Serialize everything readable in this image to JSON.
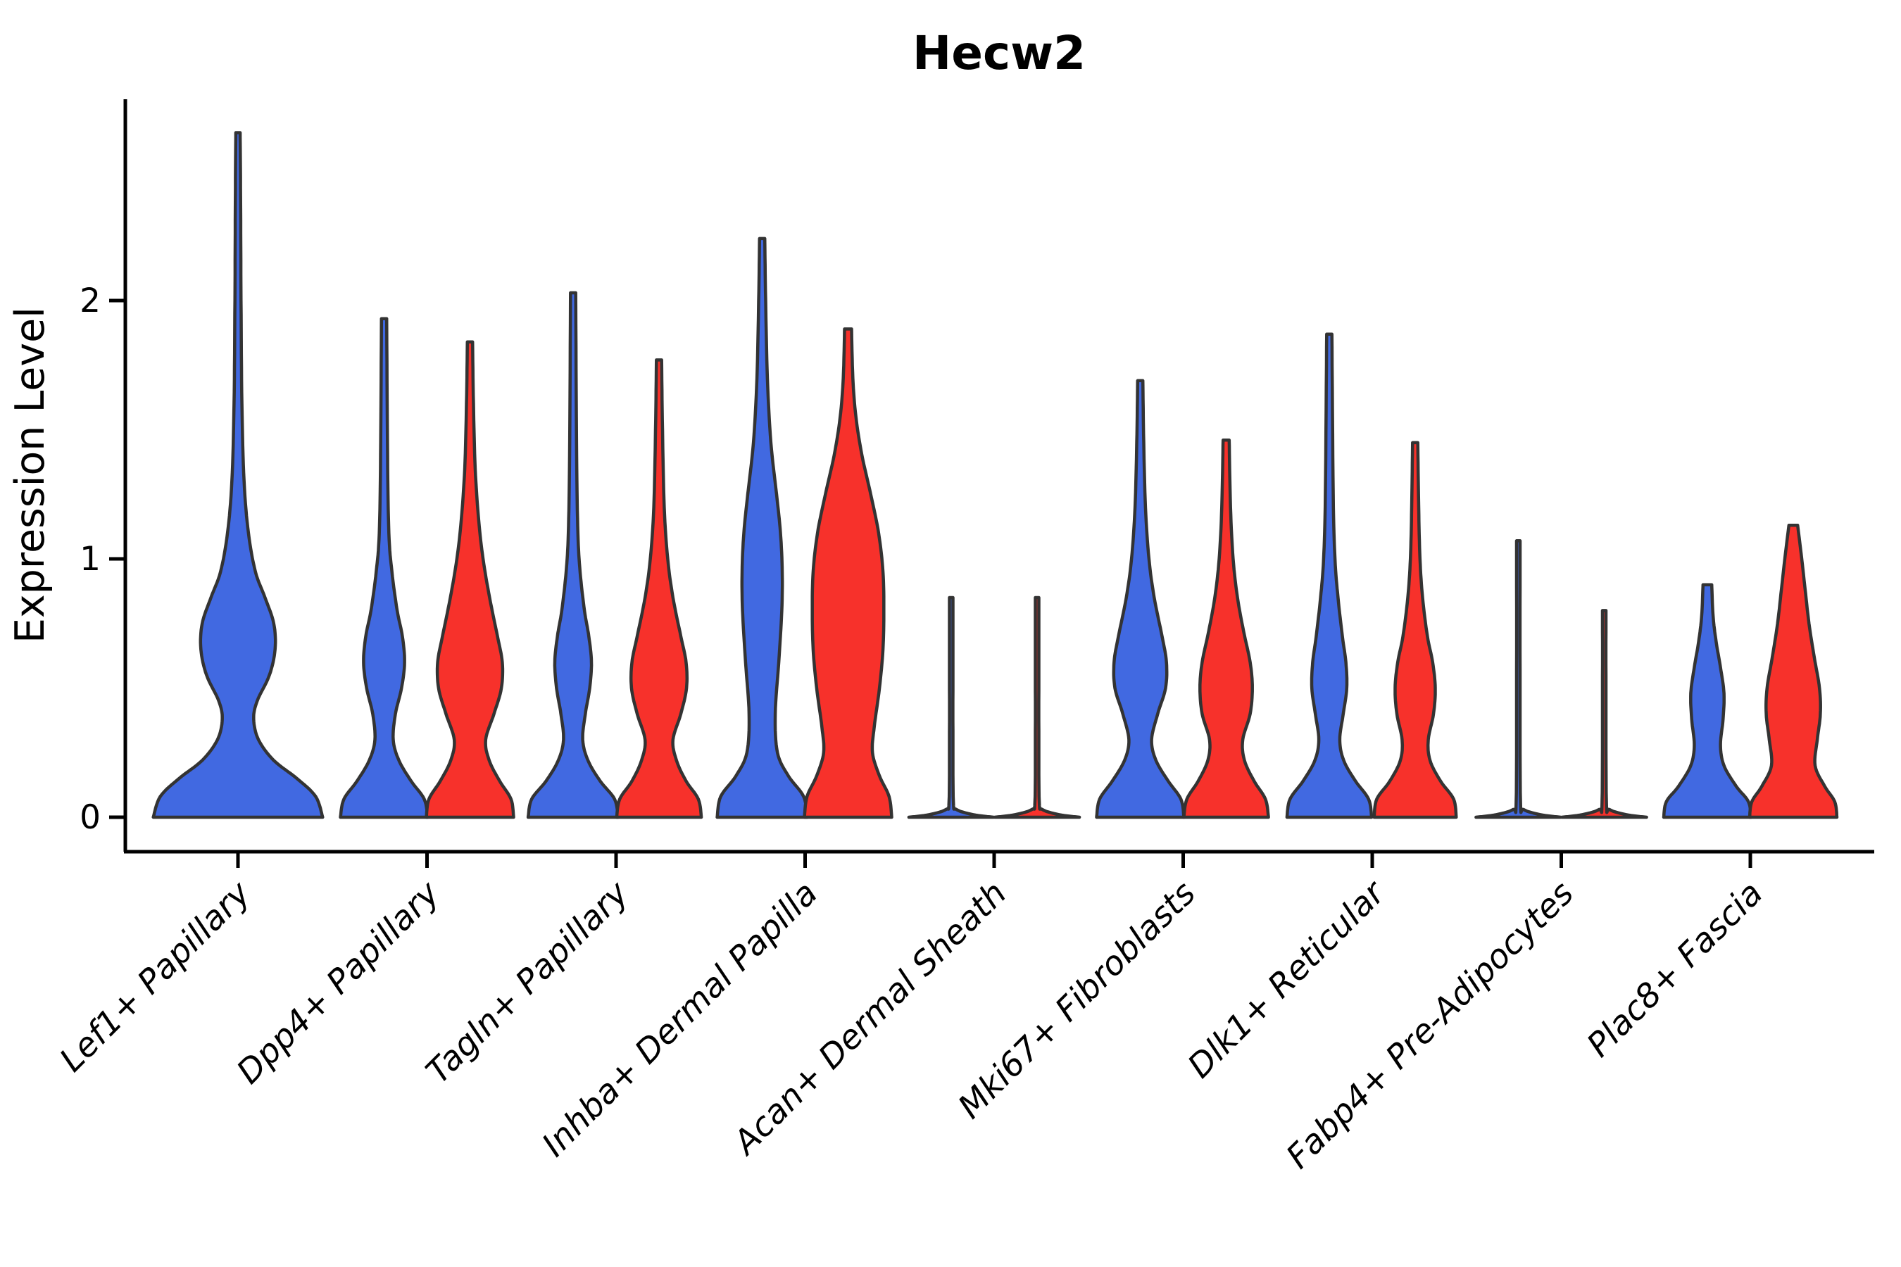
{
  "chart_data": {
    "type": "violin",
    "title": "Hecw2",
    "ylabel": "Expression Level",
    "xlabel": "",
    "yticks": [
      0,
      1,
      2
    ],
    "ylim": [
      -0.13,
      2.78
    ],
    "grid": false,
    "legend": "none",
    "categories": [
      "Lef1+ Papillary",
      "Dpp4+ Papillary",
      "Tagln+ Papillary",
      "Inhba+ Dermal Papilla",
      "Acan+ Dermal Sheath",
      "Mki67+ Fibroblasts",
      "Dlk1+ Reticular",
      "Fabp4+ Pre-Adipocytes",
      "Plac8+ Fascia"
    ],
    "series_colors": {
      "blue": "#4169e1",
      "red": "#f7312b"
    },
    "outline_color": "#333333",
    "axis_color": "#000000",
    "violins": [
      {
        "category": "Lef1+ Papillary",
        "group": 0,
        "side": "center",
        "color": "blue",
        "max": 2.65,
        "profile": [
          [
            0,
            1.94
          ],
          [
            0.08,
            1.78
          ],
          [
            0.15,
            1.35
          ],
          [
            0.22,
            0.82
          ],
          [
            0.3,
            0.47
          ],
          [
            0.38,
            0.36
          ],
          [
            0.45,
            0.44
          ],
          [
            0.55,
            0.72
          ],
          [
            0.65,
            0.85
          ],
          [
            0.75,
            0.82
          ],
          [
            0.85,
            0.62
          ],
          [
            0.95,
            0.4
          ],
          [
            1.1,
            0.24
          ],
          [
            1.3,
            0.14
          ],
          [
            1.6,
            0.09
          ],
          [
            2.0,
            0.07
          ],
          [
            2.4,
            0.06
          ],
          [
            2.65,
            0.05
          ]
        ]
      },
      {
        "category": "Dpp4+ Papillary",
        "group": 1,
        "side": "left",
        "color": "blue",
        "max": 1.93,
        "profile": [
          [
            0,
            1.0
          ],
          [
            0.07,
            0.92
          ],
          [
            0.14,
            0.62
          ],
          [
            0.22,
            0.34
          ],
          [
            0.3,
            0.21
          ],
          [
            0.4,
            0.26
          ],
          [
            0.5,
            0.4
          ],
          [
            0.6,
            0.47
          ],
          [
            0.7,
            0.42
          ],
          [
            0.8,
            0.3
          ],
          [
            0.95,
            0.18
          ],
          [
            1.1,
            0.11
          ],
          [
            1.4,
            0.08
          ],
          [
            1.93,
            0.06
          ]
        ]
      },
      {
        "category": "Dpp4+ Papillary",
        "group": 1,
        "side": "right",
        "color": "red",
        "max": 1.84,
        "profile": [
          [
            0,
            1.0
          ],
          [
            0.07,
            0.94
          ],
          [
            0.14,
            0.68
          ],
          [
            0.22,
            0.44
          ],
          [
            0.3,
            0.36
          ],
          [
            0.4,
            0.55
          ],
          [
            0.5,
            0.72
          ],
          [
            0.6,
            0.74
          ],
          [
            0.7,
            0.63
          ],
          [
            0.85,
            0.45
          ],
          [
            1.0,
            0.3
          ],
          [
            1.15,
            0.2
          ],
          [
            1.35,
            0.12
          ],
          [
            1.6,
            0.08
          ],
          [
            1.84,
            0.06
          ]
        ]
      },
      {
        "category": "Tagln+ Papillary",
        "group": 2,
        "side": "left",
        "color": "blue",
        "max": 2.03,
        "profile": [
          [
            0,
            1.03
          ],
          [
            0.07,
            0.95
          ],
          [
            0.14,
            0.62
          ],
          [
            0.22,
            0.34
          ],
          [
            0.3,
            0.22
          ],
          [
            0.4,
            0.28
          ],
          [
            0.5,
            0.38
          ],
          [
            0.6,
            0.42
          ],
          [
            0.7,
            0.36
          ],
          [
            0.8,
            0.26
          ],
          [
            0.95,
            0.16
          ],
          [
            1.1,
            0.11
          ],
          [
            1.4,
            0.08
          ],
          [
            2.03,
            0.06
          ]
        ]
      },
      {
        "category": "Tagln+ Papillary",
        "group": 2,
        "side": "right",
        "color": "red",
        "max": 1.77,
        "profile": [
          [
            0,
            0.97
          ],
          [
            0.07,
            0.9
          ],
          [
            0.14,
            0.62
          ],
          [
            0.22,
            0.4
          ],
          [
            0.3,
            0.32
          ],
          [
            0.4,
            0.5
          ],
          [
            0.5,
            0.63
          ],
          [
            0.6,
            0.62
          ],
          [
            0.7,
            0.5
          ],
          [
            0.85,
            0.32
          ],
          [
            1.0,
            0.2
          ],
          [
            1.2,
            0.12
          ],
          [
            1.5,
            0.08
          ],
          [
            1.77,
            0.06
          ]
        ]
      },
      {
        "category": "Inhba+ Dermal Papilla",
        "group": 3,
        "side": "left",
        "color": "blue",
        "max": 2.24,
        "profile": [
          [
            0,
            1.03
          ],
          [
            0.08,
            0.95
          ],
          [
            0.16,
            0.6
          ],
          [
            0.25,
            0.35
          ],
          [
            0.4,
            0.3
          ],
          [
            0.6,
            0.38
          ],
          [
            0.8,
            0.45
          ],
          [
            0.95,
            0.46
          ],
          [
            1.1,
            0.42
          ],
          [
            1.25,
            0.33
          ],
          [
            1.45,
            0.2
          ],
          [
            1.7,
            0.12
          ],
          [
            2.0,
            0.08
          ],
          [
            2.24,
            0.06
          ]
        ]
      },
      {
        "category": "Inhba+ Dermal Papilla",
        "group": 3,
        "side": "right",
        "color": "red",
        "max": 1.89,
        "profile": [
          [
            0,
            1.0
          ],
          [
            0.08,
            0.94
          ],
          [
            0.16,
            0.72
          ],
          [
            0.25,
            0.56
          ],
          [
            0.35,
            0.6
          ],
          [
            0.5,
            0.72
          ],
          [
            0.65,
            0.8
          ],
          [
            0.8,
            0.82
          ],
          [
            0.95,
            0.8
          ],
          [
            1.1,
            0.7
          ],
          [
            1.25,
            0.52
          ],
          [
            1.4,
            0.32
          ],
          [
            1.55,
            0.18
          ],
          [
            1.7,
            0.11
          ],
          [
            1.89,
            0.08
          ]
        ]
      },
      {
        "category": "Acan+ Dermal Sheath",
        "group": 4,
        "side": "left",
        "color": "blue",
        "max": 0.85,
        "profile": [
          [
            0,
            0.97
          ],
          [
            0.01,
            0.5
          ],
          [
            0.03,
            0.12
          ],
          [
            0.06,
            0.05
          ],
          [
            0.3,
            0.04
          ],
          [
            0.6,
            0.04
          ],
          [
            0.85,
            0.04
          ]
        ]
      },
      {
        "category": "Acan+ Dermal Sheath",
        "group": 4,
        "side": "right",
        "color": "red",
        "max": 0.85,
        "profile": [
          [
            0,
            0.97
          ],
          [
            0.01,
            0.5
          ],
          [
            0.03,
            0.12
          ],
          [
            0.06,
            0.05
          ],
          [
            0.3,
            0.04
          ],
          [
            0.6,
            0.04
          ],
          [
            0.85,
            0.04
          ]
        ]
      },
      {
        "category": "Mki67+ Fibroblasts",
        "group": 5,
        "side": "left",
        "color": "blue",
        "max": 1.69,
        "profile": [
          [
            0,
            1.0
          ],
          [
            0.07,
            0.93
          ],
          [
            0.14,
            0.64
          ],
          [
            0.22,
            0.36
          ],
          [
            0.3,
            0.26
          ],
          [
            0.4,
            0.4
          ],
          [
            0.5,
            0.58
          ],
          [
            0.6,
            0.6
          ],
          [
            0.7,
            0.5
          ],
          [
            0.85,
            0.32
          ],
          [
            1.0,
            0.2
          ],
          [
            1.2,
            0.12
          ],
          [
            1.45,
            0.08
          ],
          [
            1.69,
            0.06
          ]
        ]
      },
      {
        "category": "Mki67+ Fibroblasts",
        "group": 5,
        "side": "right",
        "color": "red",
        "max": 1.46,
        "profile": [
          [
            0,
            0.97
          ],
          [
            0.07,
            0.9
          ],
          [
            0.14,
            0.64
          ],
          [
            0.22,
            0.42
          ],
          [
            0.3,
            0.38
          ],
          [
            0.4,
            0.55
          ],
          [
            0.5,
            0.6
          ],
          [
            0.6,
            0.55
          ],
          [
            0.72,
            0.4
          ],
          [
            0.85,
            0.26
          ],
          [
            1.0,
            0.16
          ],
          [
            1.2,
            0.1
          ],
          [
            1.46,
            0.07
          ]
        ]
      },
      {
        "category": "Dlk1+ Reticular",
        "group": 6,
        "side": "left",
        "color": "blue",
        "max": 1.87,
        "profile": [
          [
            0,
            0.97
          ],
          [
            0.07,
            0.9
          ],
          [
            0.14,
            0.6
          ],
          [
            0.22,
            0.33
          ],
          [
            0.3,
            0.24
          ],
          [
            0.4,
            0.32
          ],
          [
            0.5,
            0.4
          ],
          [
            0.6,
            0.38
          ],
          [
            0.7,
            0.3
          ],
          [
            0.85,
            0.2
          ],
          [
            1.0,
            0.13
          ],
          [
            1.25,
            0.09
          ],
          [
            1.87,
            0.06
          ]
        ]
      },
      {
        "category": "Dlk1+ Reticular",
        "group": 6,
        "side": "right",
        "color": "red",
        "max": 1.45,
        "profile": [
          [
            0,
            0.94
          ],
          [
            0.07,
            0.88
          ],
          [
            0.14,
            0.58
          ],
          [
            0.22,
            0.34
          ],
          [
            0.3,
            0.3
          ],
          [
            0.4,
            0.42
          ],
          [
            0.5,
            0.46
          ],
          [
            0.6,
            0.4
          ],
          [
            0.7,
            0.28
          ],
          [
            0.85,
            0.17
          ],
          [
            1.0,
            0.11
          ],
          [
            1.2,
            0.08
          ],
          [
            1.45,
            0.06
          ]
        ]
      },
      {
        "category": "Fabp4+ Pre-Adipocytes",
        "group": 7,
        "side": "left",
        "color": "blue",
        "max": 1.07,
        "profile": [
          [
            0,
            0.97
          ],
          [
            0.01,
            0.5
          ],
          [
            0.03,
            0.12
          ],
          [
            0.06,
            0.05
          ],
          [
            0.5,
            0.04
          ],
          [
            1.07,
            0.04
          ]
        ]
      },
      {
        "category": "Fabp4+ Pre-Adipocytes",
        "group": 7,
        "side": "right",
        "color": "red",
        "max": 0.8,
        "profile": [
          [
            0,
            0.97
          ],
          [
            0.01,
            0.5
          ],
          [
            0.03,
            0.12
          ],
          [
            0.06,
            0.05
          ],
          [
            0.5,
            0.04
          ],
          [
            0.8,
            0.04
          ]
        ]
      },
      {
        "category": "Plac8+ Fascia",
        "group": 8,
        "side": "left",
        "color": "blue",
        "max": 0.9,
        "profile": [
          [
            0,
            1.0
          ],
          [
            0.06,
            0.94
          ],
          [
            0.12,
            0.66
          ],
          [
            0.2,
            0.38
          ],
          [
            0.28,
            0.3
          ],
          [
            0.38,
            0.36
          ],
          [
            0.48,
            0.38
          ],
          [
            0.58,
            0.3
          ],
          [
            0.68,
            0.2
          ],
          [
            0.78,
            0.13
          ],
          [
            0.9,
            0.1
          ]
        ]
      },
      {
        "category": "Plac8+ Fascia",
        "group": 8,
        "side": "right",
        "color": "red",
        "max": 1.13,
        "profile": [
          [
            0,
            1.0
          ],
          [
            0.06,
            0.95
          ],
          [
            0.12,
            0.72
          ],
          [
            0.2,
            0.5
          ],
          [
            0.3,
            0.55
          ],
          [
            0.4,
            0.62
          ],
          [
            0.5,
            0.6
          ],
          [
            0.62,
            0.48
          ],
          [
            0.75,
            0.36
          ],
          [
            0.9,
            0.26
          ],
          [
            1.02,
            0.18
          ],
          [
            1.13,
            0.1
          ]
        ]
      }
    ]
  }
}
